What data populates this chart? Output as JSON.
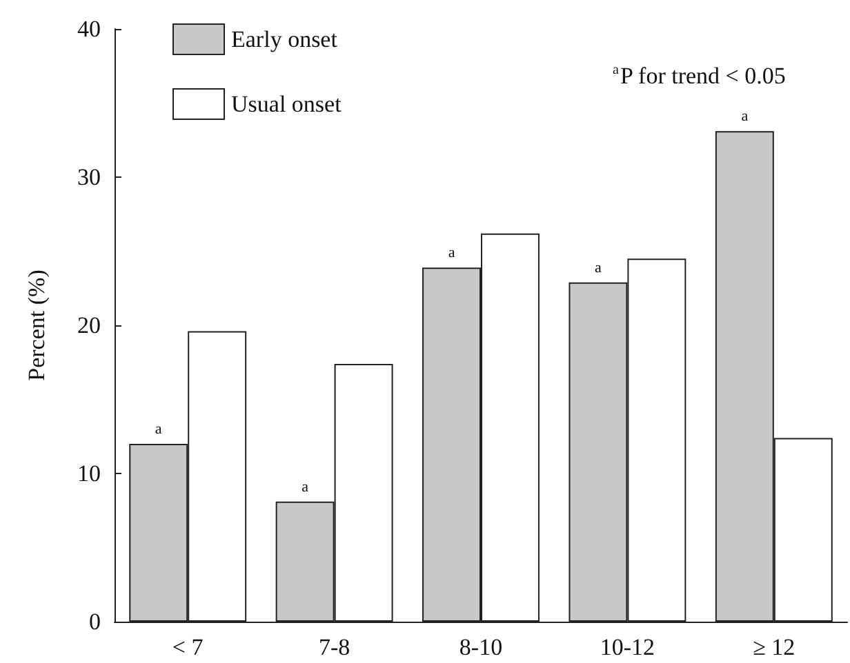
{
  "chart_data": {
    "type": "bar",
    "categories": [
      "< 7",
      "7-8",
      "8-10",
      "10-12",
      "≥ 12"
    ],
    "series": [
      {
        "name": "Early onset",
        "color": "#c8c8c8",
        "values": [
          12.0,
          8.1,
          23.9,
          22.9,
          33.1
        ]
      },
      {
        "name": "Usual onset",
        "color": "#ffffff",
        "values": [
          19.6,
          17.4,
          26.2,
          24.5,
          12.4
        ]
      }
    ],
    "ylabel": "Percent (%)",
    "ylim": [
      0,
      40
    ],
    "yticks": [
      0,
      10,
      20,
      30,
      40
    ],
    "grid": false,
    "legend": "top left",
    "annotations": [
      "$^{a}$P for trend < 0.05",
      {
        "text": "a",
        "x": "< 7",
        "y": 12.0
      },
      {
        "text": "a",
        "x": "7-8",
        "y": 8.1
      },
      {
        "text": "a",
        "x": "8-10",
        "y": 23.9
      },
      {
        "text": "a",
        "x": "10-12",
        "y": 22.9
      },
      {
        "text": "a",
        "x": "≥ 12",
        "y": 33.1
      }
    ]
  }
}
